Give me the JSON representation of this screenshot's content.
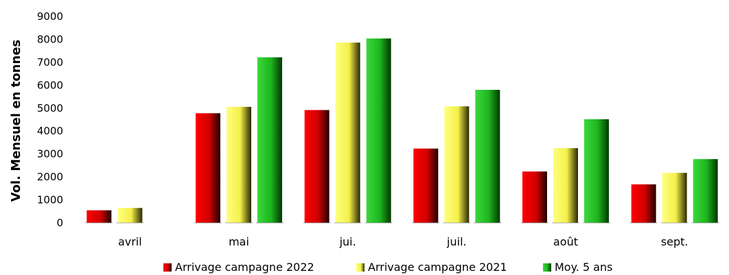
{
  "chart_data": {
    "type": "bar",
    "title": "",
    "xlabel": "",
    "ylabel": "Vol. Mensuel en tonnes",
    "categories": [
      "avril",
      "mai",
      "jui.",
      "juil.",
      "août",
      "sept."
    ],
    "ylim": [
      0,
      9000
    ],
    "yticks": [
      "0",
      "1000",
      "2000",
      "3000",
      "4000",
      "5000",
      "6000",
      "7000",
      "8000",
      "9000"
    ],
    "grid": false,
    "legend_position": "bottom",
    "series": [
      {
        "name": "Arrivage campagne 2022",
        "color": "#e00000",
        "values": [
          550,
          4780,
          4920,
          3240,
          2240,
          1680
        ]
      },
      {
        "name": "Arrivage campagne 2021",
        "color": "#ffff66",
        "values": [
          650,
          5060,
          7860,
          5080,
          3260,
          2180
        ]
      },
      {
        "name": "Moy. 5 ans",
        "color": "#22c022",
        "values": [
          null,
          7220,
          8040,
          5800,
          4520,
          2780
        ]
      }
    ]
  }
}
